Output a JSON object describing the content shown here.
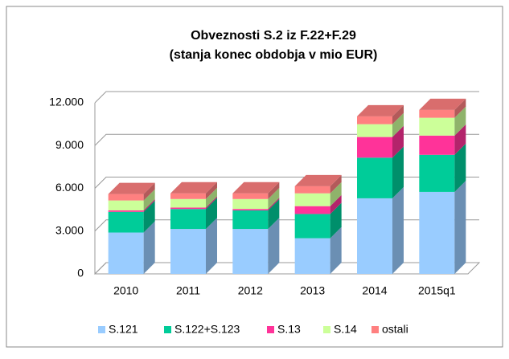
{
  "chart_data": {
    "type": "bar3d_stacked",
    "title": [
      "Obveznosti S.2 iz F.22+F.29",
      "(stanja konec obdobja v mio EUR)"
    ],
    "categories": [
      "2010",
      "2011",
      "2012",
      "2013",
      "2014",
      "2015q1"
    ],
    "series": [
      {
        "name": "S.121",
        "color": "#99ccff",
        "values": [
          2900,
          3150,
          3150,
          2500,
          5300,
          5750
        ]
      },
      {
        "name": "S.122+S.123",
        "color": "#00cc99",
        "values": [
          1450,
          1400,
          1300,
          1700,
          2850,
          2600
        ]
      },
      {
        "name": "S.13",
        "color": "#ff3399",
        "values": [
          100,
          100,
          100,
          550,
          1450,
          1350
        ]
      },
      {
        "name": "S.14",
        "color": "#ccff99",
        "values": [
          700,
          600,
          700,
          900,
          900,
          1250
        ]
      },
      {
        "name": "ostali",
        "color": "#ff8080",
        "values": [
          450,
          400,
          400,
          500,
          550,
          550
        ]
      }
    ],
    "ylim": [
      0,
      12000
    ],
    "yticks": [
      0,
      {
        "value": 3000,
        "label": "3.000"
      },
      {
        "value": 6000,
        "label": "6.000"
      },
      {
        "value": 9000,
        "label": "9.000"
      },
      {
        "value": 12000,
        "label": "12.000"
      }
    ],
    "grid": true,
    "legend": "bottom"
  }
}
